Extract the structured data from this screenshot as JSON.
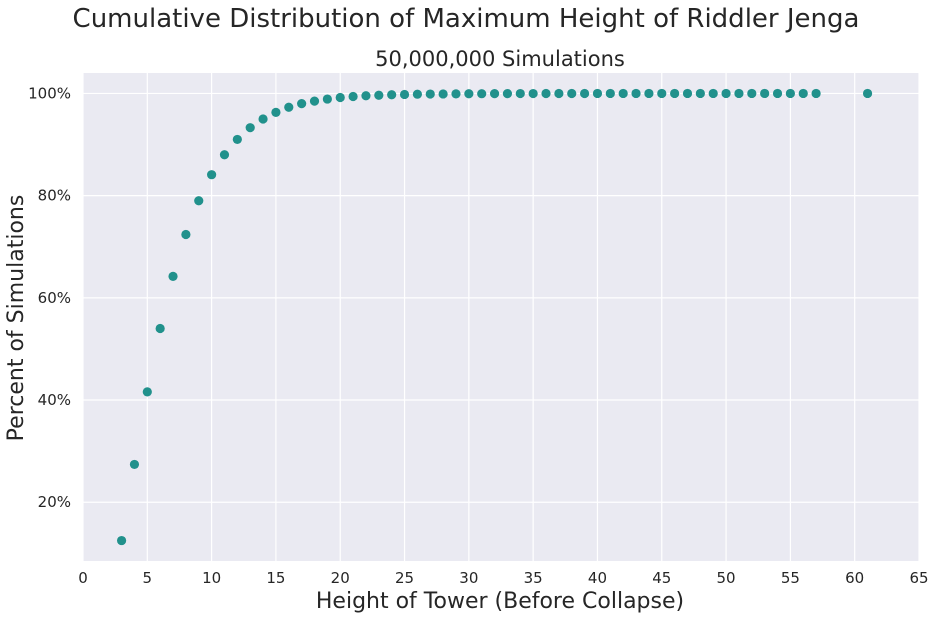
{
  "chart_data": {
    "type": "scatter",
    "title": "Cumulative Distribution of Maximum Height of Riddler Jenga",
    "subtitle": "50,000,000 Simulations",
    "xlabel": "Height of Tower (Before Collapse)",
    "ylabel": "Percent of Simulations",
    "xlim": [
      0,
      65
    ],
    "ylim": [
      8.5,
      104
    ],
    "xticks": [
      0,
      5,
      10,
      15,
      20,
      25,
      30,
      35,
      40,
      45,
      50,
      55,
      60,
      65
    ],
    "xtick_labels": [
      "0",
      "5",
      "10",
      "15",
      "20",
      "25",
      "30",
      "35",
      "40",
      "45",
      "50",
      "55",
      "60",
      "65"
    ],
    "yticks": [
      20,
      40,
      60,
      80,
      100
    ],
    "ytick_labels": [
      "20%",
      "40%",
      "60%",
      "80%",
      "100%"
    ],
    "grid": true,
    "style": {
      "background": "#eaeaf2",
      "grid_color": "#ffffff",
      "point_color": "#21918c"
    },
    "series": [
      {
        "x": [
          3,
          4,
          5,
          6,
          7,
          8,
          9,
          10,
          11,
          12,
          13,
          14,
          15,
          16,
          17,
          18,
          19,
          20,
          21,
          22,
          23,
          24,
          25,
          26,
          27,
          28,
          29,
          30,
          31,
          32,
          33,
          34,
          35,
          36,
          37,
          38,
          39,
          40,
          41,
          42,
          43,
          44,
          45,
          46,
          47,
          48,
          49,
          50,
          51,
          52,
          53,
          54,
          55,
          56,
          57,
          61
        ],
        "y": [
          12.5,
          27.4,
          41.6,
          54.0,
          64.2,
          72.4,
          79.0,
          84.1,
          88.0,
          91.0,
          93.3,
          95.0,
          96.3,
          97.3,
          98.0,
          98.5,
          98.9,
          99.2,
          99.4,
          99.55,
          99.65,
          99.75,
          99.8,
          99.85,
          99.88,
          99.9,
          99.92,
          99.94,
          99.95,
          99.96,
          99.97,
          99.98,
          99.98,
          99.99,
          99.99,
          99.99,
          99.99,
          100,
          100,
          100,
          100,
          100,
          100,
          100,
          100,
          100,
          100,
          100,
          100,
          100,
          100,
          100,
          100,
          100,
          100,
          100
        ]
      }
    ]
  }
}
